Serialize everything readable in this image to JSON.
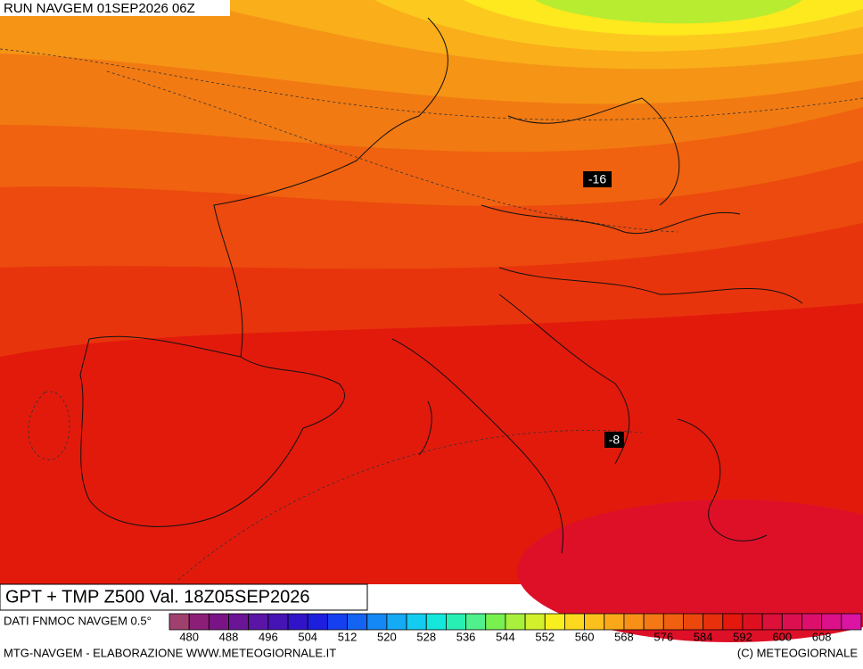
{
  "header": {
    "run": "RUN NAVGEM 01SEP2026 06Z"
  },
  "map": {
    "labels": [
      "-16",
      "-8"
    ]
  },
  "footer": {
    "title": "GPT + TMP Z500 Val. 18Z05SEP2026",
    "source": "DATI FNMOC NAVGEM 0.5°",
    "credit": "MTG-NAVGEM - ELABORAZIONE WWW.METEOGIORNALE.IT",
    "copyright": "(C) METEOGIORNALE"
  },
  "legend": {
    "labels": [
      480,
      488,
      496,
      504,
      512,
      520,
      528,
      536,
      544,
      552,
      560,
      568,
      576,
      584,
      592,
      600,
      608
    ],
    "colors": [
      "#a0406e",
      "#8c1e78",
      "#7a1486",
      "#6a1496",
      "#5a14a6",
      "#4614b4",
      "#3214c8",
      "#1e1ede",
      "#1440f0",
      "#1464f4",
      "#1488f4",
      "#14aaf4",
      "#14ccf0",
      "#14e8dc",
      "#28f0b4",
      "#50f08c",
      "#78f050",
      "#a8f03c",
      "#d2f02c",
      "#f8f01e",
      "#fcd81e",
      "#fcc01c",
      "#faa81a",
      "#f89018",
      "#f47814",
      "#f06010",
      "#ec480e",
      "#e8300c",
      "#e4180c",
      "#de1020",
      "#dc1038",
      "#dc1050",
      "#dc106c",
      "#dc1088",
      "#dc14a4"
    ]
  }
}
